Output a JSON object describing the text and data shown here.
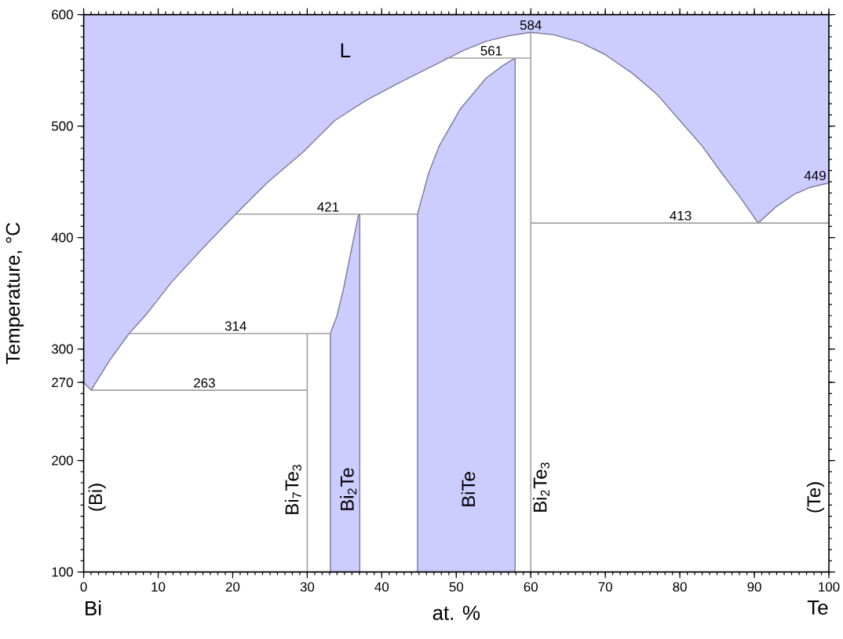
{
  "chart_data": {
    "type": "area",
    "xlabel": "at. %",
    "ylabel": "Temperature, °C",
    "xlim": [
      0,
      100
    ],
    "ylim": [
      100,
      600
    ],
    "xticks": [
      0,
      10,
      20,
      30,
      40,
      50,
      60,
      70,
      80,
      90,
      100
    ],
    "yticks": [
      100,
      200,
      270,
      300,
      400,
      500,
      600
    ],
    "series": [
      {
        "color": "#ccccff",
        "x": [
          0,
          0,
          1,
          2,
          3.5,
          6.1,
          8.4,
          11.8,
          16.2,
          20.4,
          24.6,
          29.5,
          33.7,
          37.9,
          42.1,
          51,
          54,
          57,
          60,
          63,
          66.7,
          70,
          73.7,
          77,
          80,
          83,
          85.6,
          88,
          90.5,
          93,
          95.4,
          97.5,
          100,
          100
        ],
        "values": [
          600,
          270,
          263,
          274,
          290,
          314,
          331,
          360,
          392,
          421,
          449,
          477,
          505,
          523,
          538,
          568,
          576,
          581,
          584,
          582,
          575,
          564,
          547,
          528,
          505,
          482,
          458,
          437,
          413,
          428,
          439,
          445,
          449,
          600
        ]
      },
      {
        "color": "#ccccff",
        "x": [
          33.1,
          33.1,
          34.0,
          34.9,
          35.8,
          36.9,
          37.05,
          37.05
        ],
        "values": [
          100,
          314,
          330,
          355,
          385,
          421,
          421,
          100
        ]
      },
      {
        "color": "#ccccff",
        "x": [
          44.8,
          44.8,
          46.3,
          47.7,
          50.5,
          54.0,
          56.2,
          57.9,
          57.9
        ],
        "values": [
          100,
          421,
          458,
          482,
          515,
          543,
          554,
          561,
          100
        ]
      },
      {
        "type": "line",
        "color": "#a0a0a0",
        "x": [
          1,
          30
        ],
        "values": [
          263,
          263
        ]
      },
      {
        "type": "line",
        "color": "#a0a0a0",
        "x": [
          6.1,
          33.1
        ],
        "values": [
          314,
          314
        ]
      },
      {
        "type": "line",
        "color": "#a0a0a0",
        "x": [
          20.4,
          44.8
        ],
        "values": [
          421,
          421
        ]
      },
      {
        "type": "line",
        "color": "#a0a0a0",
        "x": [
          48.4,
          60
        ],
        "values": [
          561,
          561
        ]
      },
      {
        "type": "line",
        "color": "#a0a0a0",
        "x": [
          60,
          100
        ],
        "values": [
          413,
          413
        ]
      },
      {
        "type": "line",
        "color": "#a0a0a0",
        "x": [
          30,
          30
        ],
        "values": [
          100,
          314
        ]
      },
      {
        "type": "line",
        "color": "#a0a0a0",
        "x": [
          60,
          60
        ],
        "values": [
          100,
          584
        ]
      }
    ],
    "annotations": [
      {
        "text": "263",
        "x": 16.2,
        "y": 263
      },
      {
        "text": "314",
        "x": 20.4,
        "y": 314
      },
      {
        "text": "421",
        "x": 32.8,
        "y": 421
      },
      {
        "text": "561",
        "x": 54.7,
        "y": 561
      },
      {
        "text": "584",
        "x": 60,
        "y": 584
      },
      {
        "text": "413",
        "x": 80.1,
        "y": 413
      },
      {
        "text": "449",
        "x": 100,
        "y": 449
      },
      "L",
      "(Bi)",
      "Bi$_{7}$Te$_{3}$",
      "Bi$_{2}$Te",
      "BiTe",
      "Bi$_{2}$Te$_{3}$",
      "(Te)",
      "Bi",
      "Te"
    ]
  }
}
